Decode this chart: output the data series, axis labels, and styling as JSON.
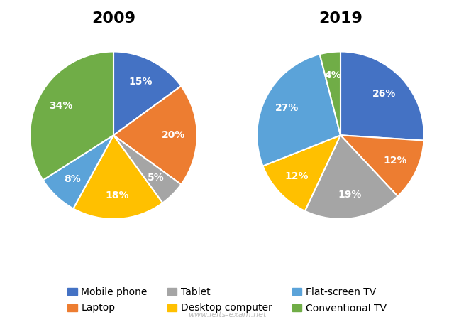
{
  "title_2009": "2009",
  "title_2019": "2019",
  "categories": [
    "Mobile phone",
    "Laptop",
    "Tablet",
    "Desktop computer",
    "Flat-screen TV",
    "Conventional TV"
  ],
  "colors": [
    "#4472C4",
    "#ED7D31",
    "#A5A5A5",
    "#FFC000",
    "#5BA3D9",
    "#70AD47"
  ],
  "values_2009": [
    15,
    20,
    5,
    18,
    8,
    34
  ],
  "values_2019": [
    26,
    12,
    19,
    12,
    27,
    4
  ],
  "labels_2009": [
    "15%",
    "20%",
    "5%",
    "18%",
    "8%",
    "34%"
  ],
  "labels_2019": [
    "26%",
    "12%",
    "19%",
    "12%",
    "27%",
    "4%"
  ],
  "startangle_2009": 90,
  "startangle_2019": 90,
  "watermark": "www.ielts-exam.net",
  "background_color": "#FFFFFF",
  "title_fontsize": 16,
  "label_fontsize": 10,
  "legend_fontsize": 10
}
